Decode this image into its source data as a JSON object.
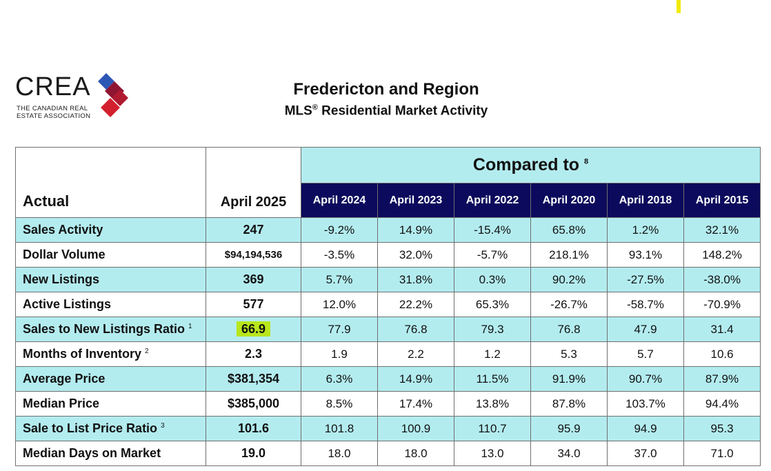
{
  "header": {
    "logo_text": "CREA",
    "logo_sub_line1": "THE CANADIAN REAL",
    "logo_sub_line2": "ESTATE ASSOCIATION",
    "title": "Fredericton and Region",
    "subtitle_pre": "MLS",
    "subtitle_reg": "®",
    "subtitle_post": " Residential Market Activity"
  },
  "table": {
    "actual_label": "Actual",
    "current_period": "April 2025",
    "compared_label": "Compared to ",
    "compared_note": "8",
    "periods": [
      "April 2024",
      "April 2023",
      "April 2022",
      "April 2020",
      "April 2018",
      "April 2015"
    ],
    "rows": [
      {
        "label": "Sales Activity",
        "note": "",
        "current": "247",
        "values": [
          "-9.2%",
          "14.9%",
          "-15.4%",
          "65.8%",
          "1.2%",
          "32.1%"
        ]
      },
      {
        "label": "Dollar Volume",
        "note": "",
        "current": "$94,194,536",
        "values": [
          "-3.5%",
          "32.0%",
          "-5.7%",
          "218.1%",
          "93.1%",
          "148.2%"
        ]
      },
      {
        "label": "New Listings",
        "note": "",
        "current": "369",
        "values": [
          "5.7%",
          "31.8%",
          "0.3%",
          "90.2%",
          "-27.5%",
          "-38.0%"
        ]
      },
      {
        "label": "Active Listings",
        "note": "",
        "current": "577",
        "values": [
          "12.0%",
          "22.2%",
          "65.3%",
          "-26.7%",
          "-58.7%",
          "-70.9%"
        ]
      },
      {
        "label": "Sales to New Listings Ratio ",
        "note": "1",
        "current": "66.9",
        "values": [
          "77.9",
          "76.8",
          "79.3",
          "76.8",
          "47.9",
          "31.4"
        ]
      },
      {
        "label": "Months of Inventory ",
        "note": "2",
        "current": "2.3",
        "values": [
          "1.9",
          "2.2",
          "1.2",
          "5.3",
          "5.7",
          "10.6"
        ]
      },
      {
        "label": "Average Price",
        "note": "",
        "current": "$381,354",
        "values": [
          "6.3%",
          "14.9%",
          "11.5%",
          "91.9%",
          "90.7%",
          "87.9%"
        ]
      },
      {
        "label": "Median Price",
        "note": "",
        "current": "$385,000",
        "values": [
          "8.5%",
          "17.4%",
          "13.8%",
          "87.8%",
          "103.7%",
          "94.4%"
        ]
      },
      {
        "label": "Sale to List Price Ratio ",
        "note": "3",
        "current": "101.6",
        "values": [
          "101.8",
          "100.9",
          "110.7",
          "95.9",
          "94.9",
          "95.3"
        ]
      },
      {
        "label": "Median Days on Market",
        "note": "",
        "current": "19.0",
        "values": [
          "18.0",
          "18.0",
          "13.0",
          "34.0",
          "37.0",
          "71.0"
        ]
      }
    ]
  },
  "colors": {
    "header_navy": "#0b0a5c",
    "row_cyan": "#b3ecef",
    "highlight_lime": "#b8e61c",
    "logo_blue": "#2d57b5",
    "logo_red": "#d3202f",
    "logo_maroon": "#8f1533"
  }
}
